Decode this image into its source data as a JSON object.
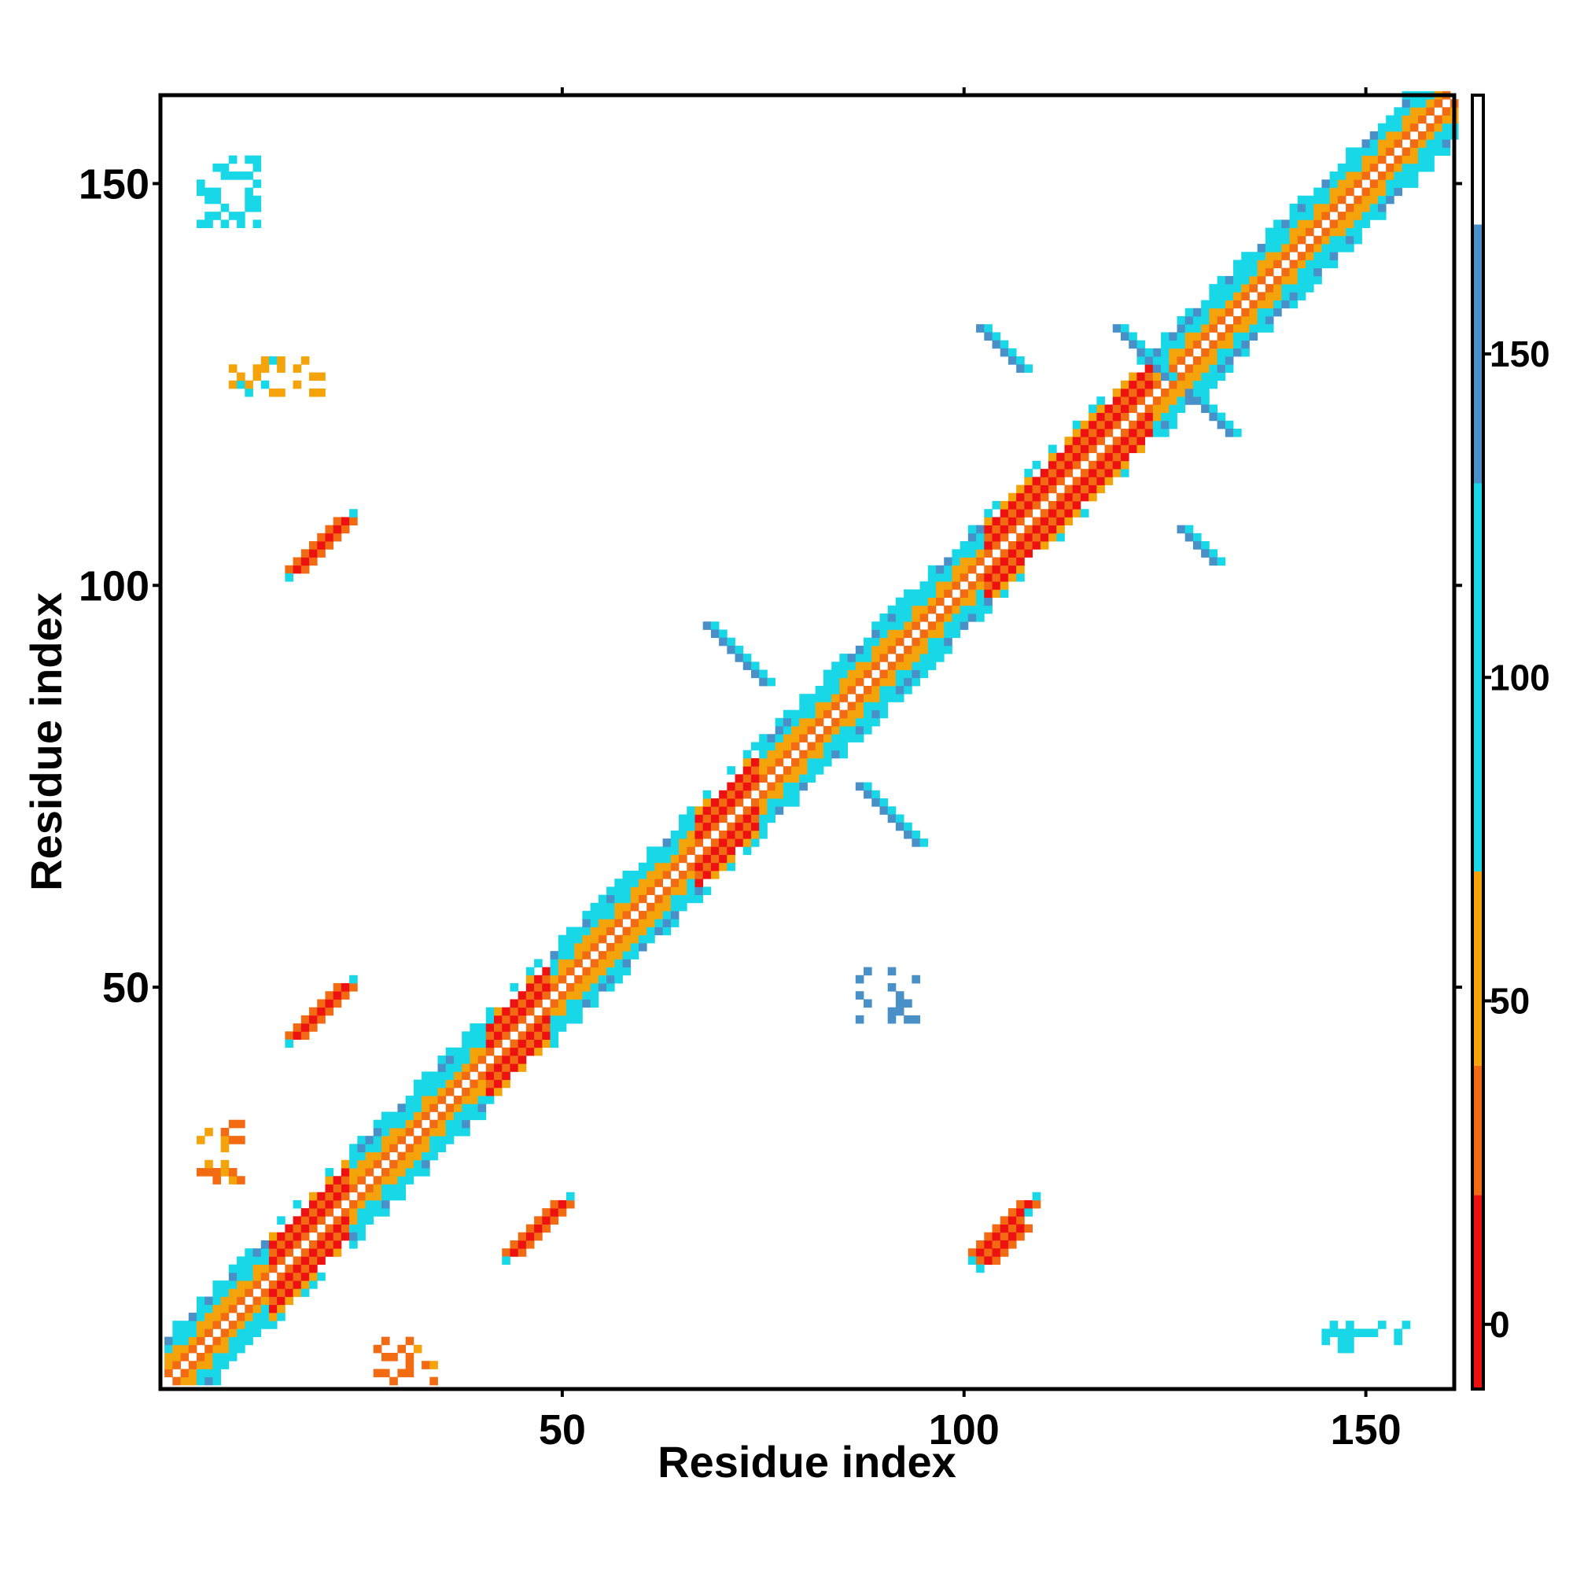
{
  "chart_data": {
    "type": "heatmap",
    "title": "",
    "xlabel": "Residue index",
    "ylabel": "Residue index",
    "xlim": [
      1,
      161
    ],
    "ylim": [
      1,
      161
    ],
    "x_ticks": [
      {
        "value": 50,
        "label": "50"
      },
      {
        "value": 100,
        "label": "100"
      },
      {
        "value": 150,
        "label": "150"
      }
    ],
    "y_ticks": [
      {
        "value": 50,
        "label": "50"
      },
      {
        "value": 100,
        "label": "100"
      },
      {
        "value": 150,
        "label": "150"
      }
    ],
    "grid": false,
    "colorbar": {
      "placement": "right",
      "range": [
        -10,
        190
      ],
      "ticks": [
        {
          "value": 0,
          "label": "0"
        },
        {
          "value": 50,
          "label": "50"
        },
        {
          "value": 100,
          "label": "100"
        },
        {
          "value": 150,
          "label": "150"
        }
      ],
      "bins": [
        {
          "from": -10,
          "to": 20,
          "color": "#ee1111"
        },
        {
          "from": 20,
          "to": 40,
          "color": "#f26a12"
        },
        {
          "from": 40,
          "to": 70,
          "color": "#f5a30a"
        },
        {
          "from": 70,
          "to": 130,
          "color": "#18d8e8"
        },
        {
          "from": 130,
          "to": 170,
          "color": "#4a90c8"
        },
        {
          "from": 170,
          "to": 190,
          "color": "#ffffff"
        }
      ]
    },
    "diagonal_segments": [
      {
        "from": 1,
        "to": 14,
        "style": "beta"
      },
      {
        "from": 14,
        "to": 24,
        "style": "helix"
      },
      {
        "from": 24,
        "to": 41,
        "style": "beta"
      },
      {
        "from": 41,
        "to": 49,
        "style": "helix"
      },
      {
        "from": 49,
        "to": 67,
        "style": "beta"
      },
      {
        "from": 67,
        "to": 75,
        "style": "helix"
      },
      {
        "from": 75,
        "to": 89,
        "style": "beta"
      },
      {
        "from": 89,
        "to": 103,
        "style": "beta"
      },
      {
        "from": 103,
        "to": 124,
        "style": "helix"
      },
      {
        "from": 124,
        "to": 138,
        "style": "beta"
      },
      {
        "from": 138,
        "to": 161,
        "style": "beta"
      }
    ],
    "off_diagonal_contacts": [
      {
        "x": [
          17,
          23
        ],
        "y": [
          44,
          50
        ],
        "type": "parallel",
        "value": 10
      },
      {
        "x": [
          44,
          50
        ],
        "y": [
          17,
          23
        ],
        "type": "parallel",
        "value": 10
      },
      {
        "x": [
          17,
          23
        ],
        "y": [
          102,
          108
        ],
        "type": "parallel",
        "value": 10
      },
      {
        "x": [
          102,
          108
        ],
        "y": [
          17,
          23
        ],
        "type": "parallel",
        "value": 10
      },
      {
        "x": [
          103,
          107
        ],
        "y": [
          16,
          21
        ],
        "type": "parallel",
        "value": 10
      },
      {
        "x": [
          119,
          125
        ],
        "y": [
          125,
          132
        ],
        "type": "anti",
        "value": 145
      },
      {
        "x": [
          128,
          133
        ],
        "y": [
          119,
          124
        ],
        "type": "anti",
        "value": 145
      },
      {
        "x": [
          102,
          107
        ],
        "y": [
          127,
          132
        ],
        "type": "anti",
        "value": 145
      },
      {
        "x": [
          127,
          132
        ],
        "y": [
          103,
          107
        ],
        "type": "anti",
        "value": 145
      },
      {
        "x": [
          68,
          75
        ],
        "y": [
          87,
          95
        ],
        "type": "anti",
        "value": 150
      },
      {
        "x": [
          87,
          95
        ],
        "y": [
          68,
          75
        ],
        "type": "anti",
        "value": 150
      },
      {
        "x": [
          145,
          155
        ],
        "y": [
          5,
          8
        ],
        "type": "cluster",
        "value": 100
      },
      {
        "x": [
          5,
          12
        ],
        "y": [
          145,
          153
        ],
        "type": "cluster",
        "value": 100
      },
      {
        "x": [
          5,
          10
        ],
        "y": [
          26,
          33
        ],
        "type": "cluster",
        "value": 30
      },
      {
        "x": [
          27,
          34
        ],
        "y": [
          1,
          6
        ],
        "type": "cluster",
        "value": 30
      },
      {
        "x": [
          9,
          20
        ],
        "y": [
          124,
          128
        ],
        "type": "cluster",
        "value": 60
      },
      {
        "x": [
          87,
          94
        ],
        "y": [
          46,
          52
        ],
        "type": "cluster",
        "value": 130
      }
    ]
  }
}
